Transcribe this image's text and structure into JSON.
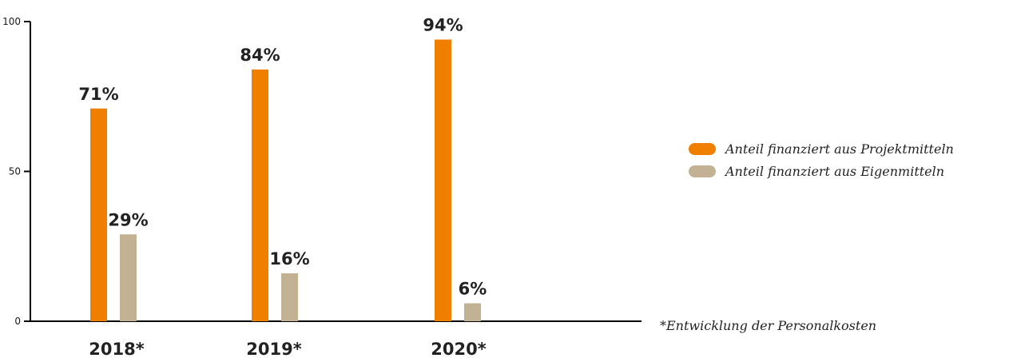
{
  "chart_data": {
    "type": "bar",
    "categories": [
      "2018*",
      "2019*",
      "2020*"
    ],
    "series": [
      {
        "name": "Anteil finanziert aus Projektmitteln",
        "values": [
          71,
          84,
          94
        ],
        "labels": [
          "71%",
          "84%",
          "94%"
        ],
        "color": "#f07f00"
      },
      {
        "name": "Anteil finanziert aus Eigenmitteln",
        "values": [
          29,
          16,
          6
        ],
        "labels": [
          "29%",
          "16%",
          "6%"
        ],
        "color": "#c2b293"
      }
    ],
    "ylim": [
      0,
      100
    ],
    "yticks": [
      0,
      50,
      100
    ],
    "xlabel": "",
    "ylabel": "",
    "legend_position": "right",
    "grid": false
  },
  "legend": {
    "items": [
      {
        "label": "Anteil finanziert aus Projektmitteln",
        "color": "#f07f00"
      },
      {
        "label": "Anteil finanziert aus Eigenmitteln",
        "color": "#c2b293"
      }
    ]
  },
  "footnote": "*Entwicklung der Personalkosten"
}
